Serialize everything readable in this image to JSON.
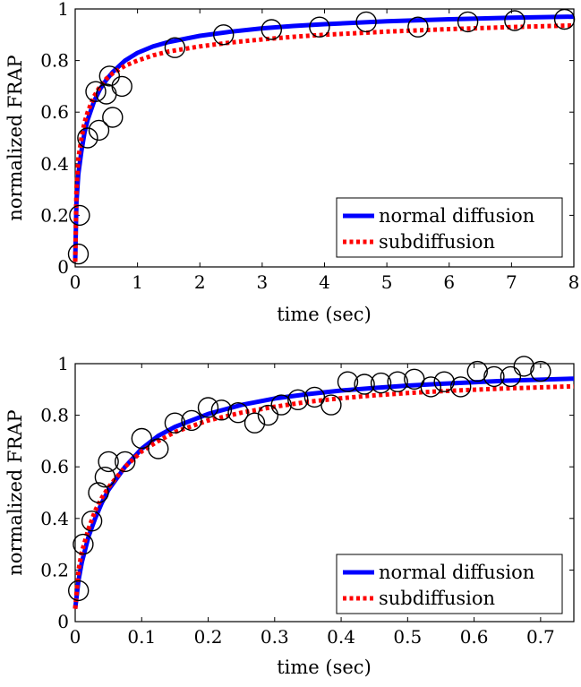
{
  "chart_data": [
    {
      "type": "line",
      "xlabel": "time (sec)",
      "ylabel": "normalized FRAP",
      "xlim": [
        0,
        8
      ],
      "ylim": [
        0,
        1
      ],
      "xticks": [
        "0",
        "1",
        "2",
        "3",
        "4",
        "5",
        "6",
        "7",
        "8"
      ],
      "yticks": [
        "0",
        "0.2",
        "0.4",
        "0.6",
        "0.8",
        "1"
      ],
      "grid": false,
      "legend_position": "bottom-right",
      "series": [
        {
          "name": "normal diffusion",
          "kind": "line",
          "style": "solid",
          "color": "#0000ff",
          "x": [
            0,
            0.02,
            0.05,
            0.1,
            0.15,
            0.2,
            0.3,
            0.4,
            0.5,
            0.6,
            0.8,
            1,
            1.25,
            1.5,
            2,
            2.5,
            3,
            3.5,
            4,
            5,
            6,
            7,
            8
          ],
          "y": [
            0.02,
            0.25,
            0.36,
            0.45,
            0.52,
            0.57,
            0.64,
            0.69,
            0.725,
            0.755,
            0.8,
            0.83,
            0.855,
            0.872,
            0.896,
            0.912,
            0.925,
            0.934,
            0.941,
            0.952,
            0.96,
            0.966,
            0.97
          ]
        },
        {
          "name": "subdiffusion",
          "kind": "line",
          "style": "dotted",
          "color": "#ff0000",
          "x": [
            0,
            0.02,
            0.05,
            0.1,
            0.15,
            0.2,
            0.3,
            0.4,
            0.5,
            0.6,
            0.8,
            1,
            1.25,
            1.5,
            2,
            2.5,
            3,
            3.5,
            4,
            5,
            6,
            7,
            8
          ],
          "y": [
            0.02,
            0.3,
            0.42,
            0.5,
            0.56,
            0.6,
            0.66,
            0.7,
            0.73,
            0.75,
            0.78,
            0.8,
            0.82,
            0.835,
            0.855,
            0.87,
            0.882,
            0.892,
            0.9,
            0.912,
            0.922,
            0.93,
            0.936
          ]
        },
        {
          "name": "",
          "kind": "markers",
          "marker": "open-circle",
          "color": "#000000",
          "x": [
            0.05,
            0.07,
            0.2,
            0.33,
            0.38,
            0.5,
            0.55,
            0.6,
            0.75,
            1.6,
            2.38,
            3.15,
            3.92,
            4.67,
            5.5,
            6.3,
            7.05,
            7.85
          ],
          "y": [
            0.05,
            0.2,
            0.5,
            0.68,
            0.53,
            0.67,
            0.74,
            0.58,
            0.7,
            0.85,
            0.9,
            0.92,
            0.93,
            0.95,
            0.93,
            0.95,
            0.955,
            0.96
          ]
        }
      ]
    },
    {
      "type": "line",
      "xlabel": "time (sec)",
      "ylabel": "normalized FRAP",
      "xlim": [
        0,
        0.75
      ],
      "ylim": [
        0,
        1
      ],
      "xticks": [
        "0",
        "0.1",
        "0.2",
        "0.3",
        "0.4",
        "0.5",
        "0.6",
        "0.7"
      ],
      "yticks": [
        "0",
        "0.2",
        "0.4",
        "0.6",
        "0.8",
        "1"
      ],
      "grid": false,
      "legend_position": "bottom-right",
      "series": [
        {
          "name": "normal diffusion",
          "kind": "line",
          "style": "solid",
          "color": "#0000ff",
          "x": [
            0,
            0.005,
            0.01,
            0.02,
            0.03,
            0.04,
            0.05,
            0.075,
            0.1,
            0.125,
            0.15,
            0.2,
            0.25,
            0.3,
            0.35,
            0.4,
            0.45,
            0.5,
            0.55,
            0.6,
            0.65,
            0.7,
            0.75
          ],
          "y": [
            0.05,
            0.16,
            0.23,
            0.33,
            0.4,
            0.46,
            0.51,
            0.6,
            0.67,
            0.72,
            0.755,
            0.805,
            0.84,
            0.865,
            0.882,
            0.896,
            0.906,
            0.915,
            0.922,
            0.928,
            0.934,
            0.938,
            0.942
          ]
        },
        {
          "name": "subdiffusion",
          "kind": "line",
          "style": "dotted",
          "color": "#ff0000",
          "x": [
            0,
            0.005,
            0.01,
            0.02,
            0.03,
            0.04,
            0.05,
            0.075,
            0.1,
            0.125,
            0.15,
            0.2,
            0.25,
            0.3,
            0.35,
            0.4,
            0.45,
            0.5,
            0.55,
            0.6,
            0.65,
            0.7,
            0.75
          ],
          "y": [
            0.05,
            0.2,
            0.27,
            0.36,
            0.43,
            0.48,
            0.52,
            0.6,
            0.66,
            0.7,
            0.735,
            0.78,
            0.81,
            0.833,
            0.852,
            0.866,
            0.877,
            0.886,
            0.893,
            0.899,
            0.904,
            0.908,
            0.912
          ]
        },
        {
          "name": "",
          "kind": "markers",
          "marker": "open-circle",
          "color": "#000000",
          "x": [
            0.005,
            0.012,
            0.025,
            0.035,
            0.045,
            0.05,
            0.075,
            0.1,
            0.125,
            0.15,
            0.175,
            0.2,
            0.22,
            0.245,
            0.27,
            0.29,
            0.31,
            0.335,
            0.36,
            0.385,
            0.41,
            0.435,
            0.46,
            0.485,
            0.51,
            0.535,
            0.555,
            0.58,
            0.605,
            0.63,
            0.655,
            0.675,
            0.7
          ],
          "y": [
            0.12,
            0.3,
            0.39,
            0.5,
            0.56,
            0.62,
            0.62,
            0.71,
            0.67,
            0.77,
            0.78,
            0.83,
            0.82,
            0.81,
            0.77,
            0.8,
            0.84,
            0.86,
            0.87,
            0.84,
            0.93,
            0.92,
            0.925,
            0.93,
            0.94,
            0.91,
            0.93,
            0.91,
            0.97,
            0.95,
            0.95,
            0.99,
            0.97
          ]
        }
      ]
    }
  ]
}
